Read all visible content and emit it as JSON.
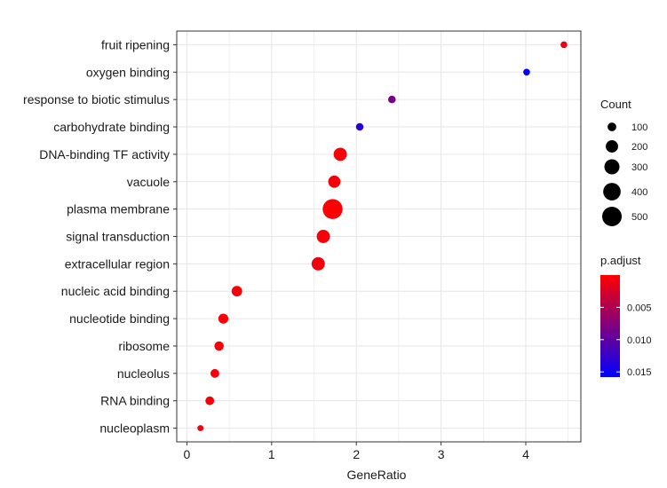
{
  "chart_data": {
    "type": "scatter",
    "xlabel": "GeneRatio",
    "xlim": [
      -0.12,
      4.65
    ],
    "xticks": [
      0,
      1,
      2,
      3,
      4
    ],
    "grid": true,
    "categories": [
      "fruit ripening",
      "oxygen binding",
      "response to biotic stimulus",
      "carbohydrate binding",
      "DNA-binding TF activity",
      "vacuole",
      "plasma membrane",
      "signal transduction",
      "extracellular region",
      "nucleic acid binding",
      "nucleotide binding",
      "ribosome",
      "nucleolus",
      "RNA binding",
      "nucleoplasm"
    ],
    "points": [
      {
        "category": "fruit ripening",
        "x": 4.45,
        "count": 60,
        "p_adjust": 0.001
      },
      {
        "category": "oxygen binding",
        "x": 4.01,
        "count": 60,
        "p_adjust": 0.0155
      },
      {
        "category": "response to biotic stimulus",
        "x": 2.42,
        "count": 75,
        "p_adjust": 0.0085
      },
      {
        "category": "carbohydrate binding",
        "x": 2.04,
        "count": 75,
        "p_adjust": 0.0135
      },
      {
        "category": "DNA-binding TF activity",
        "x": 1.81,
        "count": 230,
        "p_adjust": 0.0005
      },
      {
        "category": "vacuole",
        "x": 1.74,
        "count": 195,
        "p_adjust": 0.0005
      },
      {
        "category": "plasma membrane",
        "x": 1.72,
        "count": 520,
        "p_adjust": 0.0002
      },
      {
        "category": "signal transduction",
        "x": 1.61,
        "count": 230,
        "p_adjust": 0.0005
      },
      {
        "category": "extracellular region",
        "x": 1.55,
        "count": 230,
        "p_adjust": 0.0008
      },
      {
        "category": "nucleic acid binding",
        "x": 0.59,
        "count": 145,
        "p_adjust": 0.0005
      },
      {
        "category": "nucleotide binding",
        "x": 0.43,
        "count": 130,
        "p_adjust": 0.0005
      },
      {
        "category": "ribosome",
        "x": 0.38,
        "count": 115,
        "p_adjust": 0.0005
      },
      {
        "category": "nucleolus",
        "x": 0.33,
        "count": 100,
        "p_adjust": 0.0005
      },
      {
        "category": "RNA binding",
        "x": 0.27,
        "count": 100,
        "p_adjust": 0.0005
      },
      {
        "category": "nucleoplasm",
        "x": 0.16,
        "count": 50,
        "p_adjust": 0.0005
      }
    ],
    "legend_count": {
      "title": "Count",
      "values": [
        100,
        200,
        300,
        400,
        500
      ]
    },
    "legend_p_adjust": {
      "title": "p.adjust",
      "ticks": [
        0.005,
        0.01,
        0.015
      ],
      "tick_labels": [
        "0.005",
        "0.010",
        "0.015"
      ],
      "range": [
        0.0,
        0.0158
      ],
      "color_low": "#ff0000",
      "color_high": "#0000ff"
    },
    "legend_placement": "right"
  }
}
